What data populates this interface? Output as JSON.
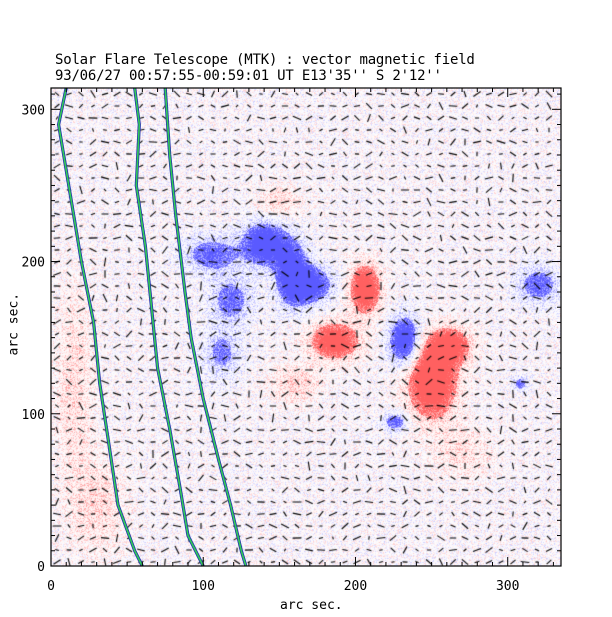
{
  "title": {
    "line1": "Solar Flare Telescope (MTK) : vector magnetic field",
    "line2": "93/06/27  00:57:55-00:59:01 UT     E13'35''  S 2'12''"
  },
  "axes": {
    "xlabel": "arc sec.",
    "ylabel": "arc sec.",
    "xlim": [
      0,
      335
    ],
    "ylim": [
      0,
      314
    ],
    "xticks": [
      0,
      100,
      200,
      300
    ],
    "yticks": [
      0,
      100,
      200,
      300
    ],
    "x_minor_step": 10,
    "y_minor_step": 10
  },
  "image": {
    "positive_color": "#ff6060",
    "negative_color": "#5a5aff",
    "background_color": "#ffffff",
    "vector_color": "#000000",
    "contour_color": "#33cc55",
    "contour_outline_color": "#2233aa"
  },
  "blobs": [
    {
      "polarity": "negative",
      "cx": 140,
      "cy": 212,
      "rx": 14,
      "ry": 14,
      "strength": 0.9
    },
    {
      "polarity": "negative",
      "cx": 158,
      "cy": 193,
      "rx": 10,
      "ry": 20,
      "strength": 0.85
    },
    {
      "polarity": "negative",
      "cx": 170,
      "cy": 185,
      "rx": 14,
      "ry": 12,
      "strength": 0.8
    },
    {
      "polarity": "negative",
      "cx": 105,
      "cy": 205,
      "rx": 18,
      "ry": 12,
      "strength": 0.55
    },
    {
      "polarity": "negative",
      "cx": 118,
      "cy": 175,
      "rx": 14,
      "ry": 16,
      "strength": 0.5
    },
    {
      "polarity": "negative",
      "cx": 112,
      "cy": 140,
      "rx": 12,
      "ry": 16,
      "strength": 0.45
    },
    {
      "polarity": "negative",
      "cx": 232,
      "cy": 148,
      "rx": 10,
      "ry": 16,
      "strength": 0.9
    },
    {
      "polarity": "negative",
      "cx": 226,
      "cy": 95,
      "rx": 8,
      "ry": 6,
      "strength": 0.6
    },
    {
      "polarity": "negative",
      "cx": 320,
      "cy": 185,
      "rx": 14,
      "ry": 12,
      "strength": 0.55
    },
    {
      "polarity": "negative",
      "cx": 308,
      "cy": 120,
      "rx": 5,
      "ry": 5,
      "strength": 0.5
    },
    {
      "polarity": "positive",
      "cx": 206,
      "cy": 182,
      "rx": 10,
      "ry": 16,
      "strength": 0.9
    },
    {
      "polarity": "positive",
      "cx": 186,
      "cy": 148,
      "rx": 16,
      "ry": 12,
      "strength": 0.85
    },
    {
      "polarity": "positive",
      "cx": 250,
      "cy": 122,
      "rx": 16,
      "ry": 24,
      "strength": 1.0
    },
    {
      "polarity": "positive",
      "cx": 262,
      "cy": 145,
      "rx": 14,
      "ry": 12,
      "strength": 0.7
    },
    {
      "polarity": "positive",
      "cx": 160,
      "cy": 120,
      "rx": 16,
      "ry": 12,
      "strength": 0.35
    },
    {
      "polarity": "positive",
      "cx": 150,
      "cy": 240,
      "rx": 14,
      "ry": 10,
      "strength": 0.3
    },
    {
      "polarity": "positive",
      "cx": 270,
      "cy": 75,
      "rx": 20,
      "ry": 16,
      "strength": 0.25
    },
    {
      "polarity": "positive",
      "cx": 15,
      "cy": 120,
      "rx": 12,
      "ry": 60,
      "strength": 0.3
    },
    {
      "polarity": "positive",
      "cx": 30,
      "cy": 40,
      "rx": 18,
      "ry": 30,
      "strength": 0.3
    }
  ],
  "contours": [
    {
      "name": "limb-contour-1",
      "points": [
        [
          10,
          314
        ],
        [
          5,
          290
        ],
        [
          15,
          230
        ],
        [
          20,
          200
        ],
        [
          28,
          160
        ],
        [
          32,
          120
        ],
        [
          38,
          80
        ],
        [
          44,
          40
        ],
        [
          55,
          10
        ],
        [
          60,
          0
        ]
      ]
    },
    {
      "name": "limb-contour-2",
      "points": [
        [
          55,
          314
        ],
        [
          58,
          290
        ],
        [
          56,
          250
        ],
        [
          62,
          210
        ],
        [
          66,
          170
        ],
        [
          70,
          130
        ],
        [
          78,
          90
        ],
        [
          85,
          50
        ],
        [
          90,
          20
        ],
        [
          100,
          0
        ]
      ]
    },
    {
      "name": "limb-contour-3",
      "points": [
        [
          75,
          314
        ],
        [
          78,
          270
        ],
        [
          82,
          230
        ],
        [
          88,
          180
        ],
        [
          92,
          150
        ],
        [
          100,
          110
        ],
        [
          110,
          70
        ],
        [
          118,
          40
        ],
        [
          125,
          10
        ],
        [
          128,
          0
        ]
      ]
    }
  ]
}
